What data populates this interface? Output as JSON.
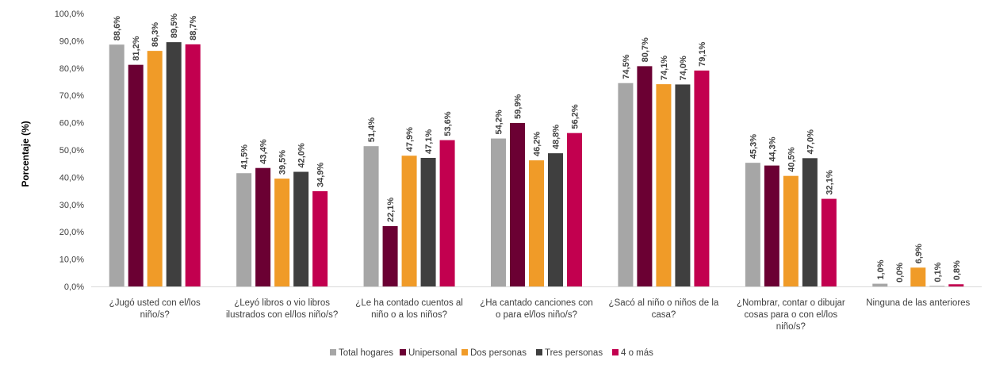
{
  "chart_data": {
    "type": "bar",
    "title": "",
    "ylabel": "Porcentaje (%)",
    "ylim": [
      0,
      100
    ],
    "ytick_labels": [
      "0,0%",
      "10,0%",
      "20,0%",
      "30,0%",
      "40,0%",
      "50,0%",
      "60,0%",
      "70,0%",
      "80,0%",
      "90,0%",
      "100,0%"
    ],
    "categories": [
      [
        "¿Jugó usted con el/los",
        "niño/s?"
      ],
      [
        "¿Leyó libros o vio libros",
        "ilustrados con el/los niño/s?"
      ],
      [
        "¿Le ha contado cuentos al",
        "niño o a los niños?"
      ],
      [
        "¿Ha cantado canciones con",
        "o para el/los niño/s?"
      ],
      [
        "¿Sacó al niño o niños de la",
        "casa?"
      ],
      [
        "¿Nombrar, contar o dibujar",
        "cosas para o con el/los",
        "niño/s?"
      ],
      [
        "Ninguna de las anteriores"
      ]
    ],
    "series": [
      {
        "name": "Total hogares",
        "color": "#A6A6A6",
        "values": [
          88.6,
          41.5,
          51.4,
          54.2,
          74.5,
          45.3,
          1.0
        ],
        "labels": [
          "88,6%",
          "41,5%",
          "51,4%",
          "54,2%",
          "74,5%",
          "45,3%",
          "1,0%"
        ]
      },
      {
        "name": "Unipersonal",
        "color": "#6B0033",
        "values": [
          81.2,
          43.4,
          22.1,
          59.9,
          80.7,
          44.3,
          0.0
        ],
        "labels": [
          "81,2%",
          "43,4%",
          "22,1%",
          "59,9%",
          "80,7%",
          "44,3%",
          "0,0%"
        ]
      },
      {
        "name": "Dos personas",
        "color": "#F09B28",
        "values": [
          86.3,
          39.5,
          47.9,
          46.2,
          74.1,
          40.5,
          6.9
        ],
        "labels": [
          "86,3%",
          "39,5%",
          "47,9%",
          "46,2%",
          "74,1%",
          "40,5%",
          "6,9%"
        ]
      },
      {
        "name": "Tres personas",
        "color": "#3F3F3F",
        "values": [
          89.5,
          42.0,
          47.1,
          48.8,
          74.0,
          47.0,
          0.1
        ],
        "labels": [
          "89,5%",
          "42,0%",
          "47,1%",
          "48,8%",
          "74,0%",
          "47,0%",
          "0,1%"
        ]
      },
      {
        "name": "4 o más",
        "color": "#C2004F",
        "values": [
          88.7,
          34.9,
          53.6,
          56.2,
          79.1,
          32.1,
          0.8
        ],
        "labels": [
          "88,7%",
          "34,9%",
          "53,6%",
          "56,2%",
          "79,1%",
          "32,1%",
          "0,8%"
        ]
      }
    ],
    "grid": false,
    "legend_position": "bottom"
  }
}
